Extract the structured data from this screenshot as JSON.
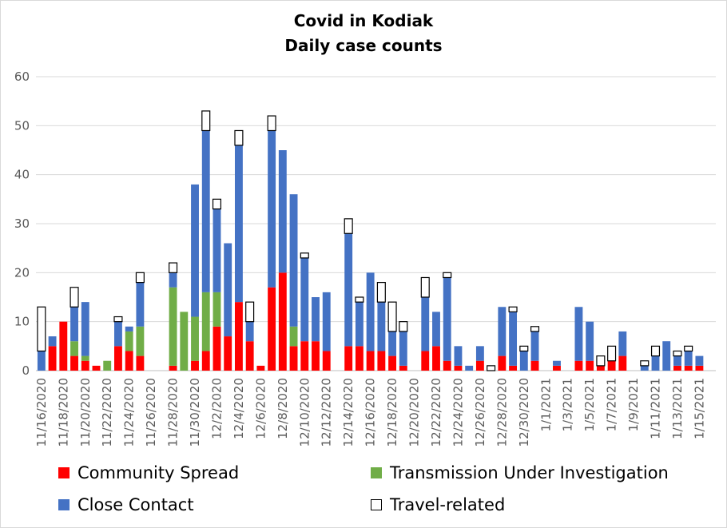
{
  "chart_data": {
    "type": "bar",
    "stacked": true,
    "title": "Covid in Kodiak",
    "subtitle": "Daily case counts",
    "xlabel": "",
    "ylabel": "",
    "ylim": [
      0,
      60
    ],
    "yticks": [
      0,
      10,
      20,
      30,
      40,
      50,
      60
    ],
    "grid": true,
    "legend_position": "bottom",
    "tick_labels": [
      "11/16/2020",
      "11/18/2020",
      "11/20/2020",
      "11/22/2020",
      "11/24/2020",
      "11/26/2020",
      "11/28/2020",
      "11/30/2020",
      "12/2/2020",
      "12/4/2020",
      "12/6/2020",
      "12/8/2020",
      "12/10/2020",
      "12/12/2020",
      "12/14/2020",
      "12/16/2020",
      "12/18/2020",
      "12/20/2020",
      "12/22/2020",
      "12/24/2020",
      "12/26/2020",
      "12/28/2020",
      "12/30/2020",
      "1/1/2021",
      "1/3/2021",
      "1/5/2021",
      "1/7/2021",
      "1/9/2021",
      "1/11/2021",
      "1/13/2021",
      "1/15/2021"
    ],
    "categories": [
      "11/16/2020",
      "11/17/2020",
      "11/18/2020",
      "11/19/2020",
      "11/20/2020",
      "11/21/2020",
      "11/22/2020",
      "11/23/2020",
      "11/24/2020",
      "11/25/2020",
      "11/26/2020",
      "11/27/2020",
      "11/28/2020",
      "11/29/2020",
      "11/30/2020",
      "12/1/2020",
      "12/2/2020",
      "12/3/2020",
      "12/4/2020",
      "12/5/2020",
      "12/6/2020",
      "12/7/2020",
      "12/8/2020",
      "12/9/2020",
      "12/10/2020",
      "12/11/2020",
      "12/12/2020",
      "12/13/2020",
      "12/14/2020",
      "12/15/2020",
      "12/16/2020",
      "12/17/2020",
      "12/18/2020",
      "12/19/2020",
      "12/20/2020",
      "12/21/2020",
      "12/22/2020",
      "12/23/2020",
      "12/24/2020",
      "12/25/2020",
      "12/26/2020",
      "12/27/2020",
      "12/28/2020",
      "12/29/2020",
      "12/30/2020",
      "12/31/2020",
      "1/1/2021",
      "1/2/2021",
      "1/3/2021",
      "1/4/2021",
      "1/5/2021",
      "1/6/2021",
      "1/7/2021",
      "1/8/2021",
      "1/9/2021",
      "1/10/2021",
      "1/11/2021",
      "1/12/2021",
      "1/13/2021",
      "1/14/2021",
      "1/15/2021",
      "1/16/2021"
    ],
    "series": [
      {
        "name": "Community Spread",
        "color": "#ff0000",
        "values": [
          0,
          5,
          10,
          3,
          2,
          1,
          0,
          5,
          4,
          3,
          0,
          0,
          1,
          0,
          2,
          4,
          9,
          7,
          14,
          6,
          1,
          17,
          20,
          5,
          6,
          6,
          4,
          0,
          5,
          5,
          4,
          4,
          3,
          1,
          0,
          4,
          5,
          2,
          1,
          0,
          2,
          0,
          3,
          1,
          0,
          2,
          0,
          1,
          0,
          2,
          2,
          1,
          2,
          3,
          0,
          0,
          0,
          0,
          1,
          1,
          1,
          0
        ]
      },
      {
        "name": "Transmission Under Investigation",
        "color": "#70ad47",
        "values": [
          0,
          0,
          0,
          3,
          1,
          0,
          2,
          0,
          4,
          6,
          0,
          0,
          16,
          12,
          9,
          12,
          7,
          0,
          0,
          0,
          0,
          0,
          0,
          4,
          0,
          0,
          0,
          0,
          0,
          0,
          0,
          0,
          0,
          0,
          0,
          0,
          0,
          0,
          0,
          0,
          0,
          0,
          0,
          0,
          0,
          0,
          0,
          0,
          0,
          0,
          0,
          0,
          0,
          0,
          0,
          0,
          0,
          0,
          0,
          0,
          0,
          0
        ]
      },
      {
        "name": "Close Contact",
        "color": "#4472c4",
        "values": [
          4,
          2,
          0,
          7,
          11,
          0,
          0,
          5,
          1,
          9,
          0,
          0,
          3,
          0,
          27,
          33,
          17,
          19,
          32,
          4,
          0,
          32,
          25,
          27,
          17,
          9,
          12,
          0,
          23,
          9,
          16,
          10,
          5,
          7,
          0,
          11,
          7,
          17,
          4,
          1,
          3,
          0,
          10,
          11,
          4,
          6,
          0,
          1,
          0,
          11,
          8,
          0,
          0,
          5,
          0,
          1,
          3,
          6,
          2,
          3,
          2,
          0
        ]
      },
      {
        "name": "Travel-related",
        "color": "#ffffff",
        "values": [
          9,
          0,
          0,
          4,
          0,
          0,
          0,
          1,
          0,
          2,
          0,
          0,
          2,
          0,
          0,
          4,
          2,
          0,
          3,
          4,
          0,
          3,
          0,
          0,
          1,
          0,
          0,
          0,
          3,
          1,
          0,
          4,
          6,
          2,
          0,
          4,
          0,
          1,
          0,
          0,
          0,
          1,
          0,
          1,
          1,
          1,
          0,
          0,
          0,
          0,
          0,
          2,
          3,
          0,
          0,
          1,
          2,
          0,
          1,
          1,
          0,
          0
        ]
      }
    ]
  }
}
